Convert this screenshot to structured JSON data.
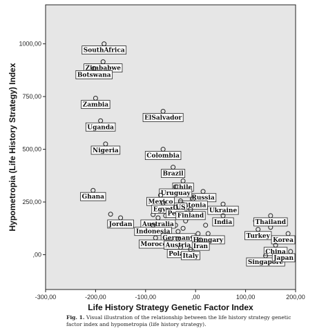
{
  "chart_data": {
    "type": "scatter",
    "title": "",
    "xlabel": "Life History Strategy Genetic Factor Index",
    "ylabel": "Hypometropia (Life History Strategy) Index",
    "xlim": [
      -300,
      200
    ],
    "ylim": [
      -165,
      1185
    ],
    "x_ticks": [
      -300,
      -200,
      -100,
      0,
      100,
      200
    ],
    "x_tick_labels": [
      "-300,00",
      "-200,00",
      "-100,00",
      ",00",
      "100,00",
      "200,00"
    ],
    "y_ticks": [
      0,
      250,
      500,
      750,
      1000
    ],
    "y_tick_labels": [
      ",00",
      "250,00",
      "500,00",
      "750,00",
      "1000,00"
    ],
    "grid": false,
    "plot_background": "#e6e6e6",
    "points": [
      {
        "label": "SouthAfrica",
        "x": -183,
        "y": 1000
      },
      {
        "label": "Zimbabwe",
        "x": -185,
        "y": 915
      },
      {
        "label": "Botswana",
        "x": -203,
        "y": 883
      },
      {
        "label": "Zambia",
        "x": -200,
        "y": 742
      },
      {
        "label": "Uganda",
        "x": -190,
        "y": 635
      },
      {
        "label": "ElSalvador",
        "x": -65,
        "y": 680
      },
      {
        "label": "Nigeria",
        "x": -180,
        "y": 525
      },
      {
        "label": "Colombia",
        "x": -65,
        "y": 500
      },
      {
        "label": "Brazil",
        "x": -45,
        "y": 415
      },
      {
        "label": "Chile",
        "x": -25,
        "y": 350
      },
      {
        "label": "Russia",
        "x": 15,
        "y": 300
      },
      {
        "label": "Uruguay",
        "x": -40,
        "y": 322
      },
      {
        "label": "Ghana",
        "x": -205,
        "y": 305
      },
      {
        "label": "Mexico",
        "x": -70,
        "y": 282
      },
      {
        "label": "Estonia",
        "x": -5,
        "y": 265
      },
      {
        "label": "Ukraine",
        "x": 55,
        "y": 240
      },
      {
        "label": "US",
        "x": -30,
        "y": 255
      },
      {
        "label": "Egypt",
        "x": -65,
        "y": 245
      },
      {
        "label": "Peru",
        "x": -40,
        "y": 225
      },
      {
        "label": "Finland",
        "x": -10,
        "y": 215
      },
      {
        "label": "India",
        "x": 55,
        "y": 185
      },
      {
        "label": "Thailand",
        "x": 150,
        "y": 185
      },
      {
        "label": "Jordan",
        "x": -150,
        "y": 175
      },
      {
        "label": "Australia",
        "x": -75,
        "y": 175
      },
      {
        "label": "Indonesia",
        "x": -85,
        "y": 140
      },
      {
        "label": "Germany",
        "x": -35,
        "y": 110
      },
      {
        "label": "Turkey",
        "x": 125,
        "y": 120
      },
      {
        "label": "Korea",
        "x": 185,
        "y": 100
      },
      {
        "label": "Hungary",
        "x": 25,
        "y": 100
      },
      {
        "label": "China",
        "x": 160,
        "y": 45
      },
      {
        "label": "Iran",
        "x": 10,
        "y": 70
      },
      {
        "label": "Morocco",
        "x": -80,
        "y": 80
      },
      {
        "label": "Austria",
        "x": -35,
        "y": 75
      },
      {
        "label": "Poland",
        "x": -30,
        "y": 35
      },
      {
        "label": "Italy",
        "x": -10,
        "y": 25
      },
      {
        "label": "Singapore",
        "x": 140,
        "y": -5
      },
      {
        "label": "Japan",
        "x": 190,
        "y": 15
      }
    ],
    "unlabeled_points": [
      {
        "x": -170,
        "y": 192
      },
      {
        "x": -85,
        "y": 190
      },
      {
        "x": -60,
        "y": 185
      },
      {
        "x": -45,
        "y": 210
      },
      {
        "x": -20,
        "y": 160
      },
      {
        "x": -15,
        "y": 175
      },
      {
        "x": -25,
        "y": 125
      },
      {
        "x": -40,
        "y": 140
      },
      {
        "x": 5,
        "y": 100
      },
      {
        "x": 20,
        "y": 140
      },
      {
        "x": 120,
        "y": 160
      },
      {
        "x": 150,
        "y": 130
      }
    ]
  },
  "caption": {
    "prefix": "Fig. 1.",
    "text": "Visual illustration of the relationship between the life history strategy genetic factor index and hypometropia (life history strategy)."
  }
}
